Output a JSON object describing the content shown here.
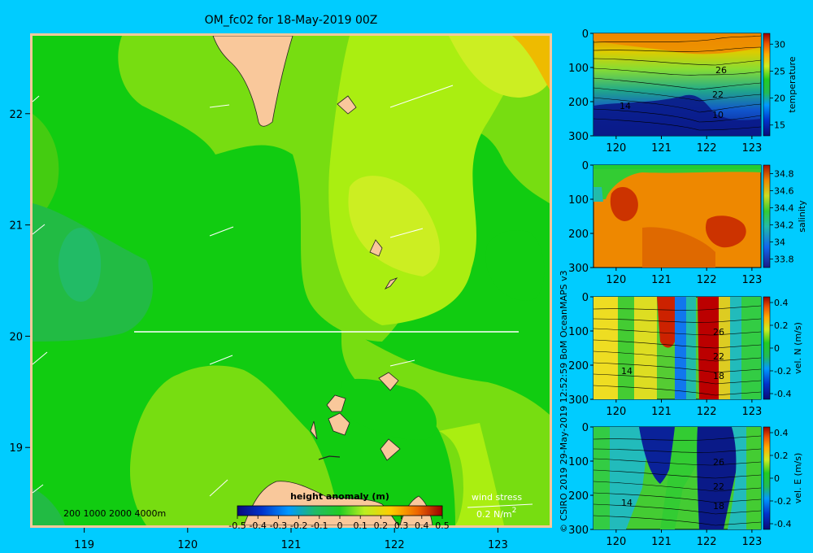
{
  "title": "OM_fc02 for 18-May-2019 00Z",
  "credit": "© CSIRO 2019   29-May-2019 12:52:59 BoM OceanMAPS v3",
  "colors": {
    "background": "#00ccff",
    "land": "#f9c89b",
    "vector": "#ffffff"
  },
  "chart_data": [
    {
      "type": "heatmap",
      "panel": "map",
      "x_ticks": [
        "119",
        "120",
        "121",
        "122",
        "123"
      ],
      "y_ticks": [
        "22",
        "21",
        "20",
        "19"
      ],
      "x_tick_values": [
        119,
        120,
        121,
        122,
        123
      ],
      "y_tick_values": [
        22,
        21,
        20,
        19
      ],
      "xlim": [
        118.5,
        123.5
      ],
      "ylim": [
        18.3,
        22.7
      ],
      "colorbar": {
        "label": "height anomaly (m)",
        "ticks": [
          "-0.5",
          "-0.4",
          "-0.3",
          "-0.2",
          "-0.1",
          "0",
          "0.1",
          "0.2",
          "0.3",
          "0.4",
          "0.5"
        ],
        "range": [
          -0.5,
          0.5
        ]
      },
      "depth_legend": "200  1000  2000  4000m",
      "wind_stress_label": "wind stress",
      "wind_stress_value": "0.2 N/m",
      "wind_stress_exponent": "2"
    },
    {
      "type": "heatmap",
      "panel": "temperature-section",
      "x_ticks": [
        "120",
        "121",
        "122",
        "123"
      ],
      "y_ticks": [
        "0",
        "100",
        "200",
        "300"
      ],
      "colorbar_label": "temperature",
      "colorbar_ticks": [
        "30",
        "25",
        "20",
        "15"
      ],
      "colorbar_range": [
        13,
        32
      ],
      "contour_labels": [
        "26",
        "22",
        "14",
        "10"
      ]
    },
    {
      "type": "heatmap",
      "panel": "salinity-section",
      "x_ticks": [
        "120",
        "121",
        "122",
        "123"
      ],
      "y_ticks": [
        "0",
        "100",
        "200",
        "300"
      ],
      "colorbar_label": "salinity",
      "colorbar_ticks": [
        "34.8",
        "34.6",
        "34.4",
        "34.2",
        "34",
        "33.8"
      ],
      "colorbar_range": [
        33.7,
        34.9
      ]
    },
    {
      "type": "heatmap",
      "panel": "velocity-north-section",
      "x_ticks": [
        "120",
        "121",
        "122",
        "123"
      ],
      "y_ticks": [
        "0",
        "100",
        "200",
        "300"
      ],
      "colorbar_label": "vel. N (m/s)",
      "colorbar_ticks": [
        "0.4",
        "0.2",
        "0",
        "-0.2",
        "-0.4"
      ],
      "colorbar_range": [
        -0.45,
        0.45
      ],
      "contour_labels": [
        "26",
        "22",
        "18",
        "14"
      ]
    },
    {
      "type": "heatmap",
      "panel": "velocity-east-section",
      "x_ticks": [
        "120",
        "121",
        "122",
        "123"
      ],
      "y_ticks": [
        "0",
        "100",
        "200",
        "300"
      ],
      "colorbar_label": "vel. E (m/s)",
      "colorbar_ticks": [
        "0.4",
        "0.2",
        "0",
        "-0.2",
        "-0.4"
      ],
      "colorbar_range": [
        -0.45,
        0.45
      ],
      "contour_labels": [
        "26",
        "22",
        "18",
        "14"
      ]
    }
  ]
}
